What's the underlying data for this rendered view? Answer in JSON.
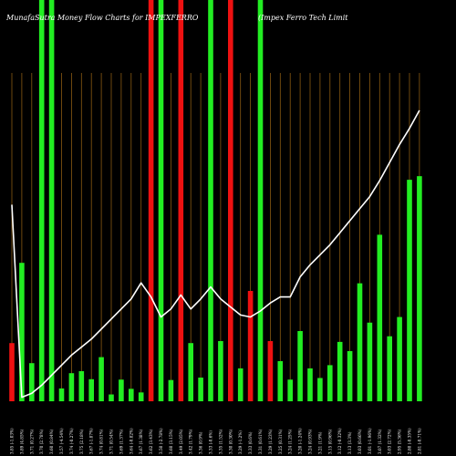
{
  "chart_data": {
    "type": "bar",
    "title": {
      "left": "MunafaSutra  Money Flow  Charts for IMPEXFERRO",
      "right": "(Impex Ferro  Tech Limit"
    },
    "xlabel": "",
    "ylabel": "",
    "grid": "vertical",
    "legend": "none",
    "colors": {
      "up": "#22ee22",
      "down": "#ee1111",
      "line": "#ffffff",
      "grid": "#8a5a12",
      "background": "#000000"
    },
    "ylim": [
      0,
      100
    ],
    "categories": [
      "Thu 05 Jun 2025",
      "Wed 04 Jun 2025",
      "Tue 03 Jun 2025",
      "Mon 02 Jun 2025",
      "Fri 30 May 2025",
      "Thu 29 May 2025",
      "Wed 28 May 2025",
      "Tue 27 May 2025",
      "Mon 26 May 2025",
      "Fri 23 May 2025",
      "Thu 22 May 2025",
      "Wed 21 May 2025",
      "Tue 20 May 2025",
      "Mon 19 May 2025",
      "Fri 16 May 2025",
      "Thu 15 May 2025",
      "Wed 14 May 2025",
      "Tue 13 May 2025",
      "Mon 12 May 2025",
      "Fri 09 May 2025",
      "Thu 08 May 2025",
      "Wed 07 May 2025",
      "Tue 06 May 2025",
      "Mon 05 May 2025",
      "Fri 02 May 2025",
      "Wed 30 Apr 2025",
      "Tue 29 Apr 2025",
      "Mon 28 Apr 2025",
      "Fri 25 Apr 2025",
      "Thu 24 Apr 2025",
      "Wed 23 Apr 2025",
      "Tue 22 Apr 2025",
      "Mon 21 Apr 2025",
      "Thu 17 Apr 2025",
      "Wed 16 Apr 2025",
      "Tue 15 Apr 2025",
      "Fri 11 Apr 2025",
      "Wed 09 Apr 2025",
      "Tue 08 Apr 2025",
      "Mon 07 Apr 2025",
      "Fri 04 Apr 2025",
      "Thu 03 Apr 2025"
    ],
    "tick_labels": [
      "3.85 (-1.03%)",
      "3.89 (4.85%)",
      "3.71 (0.27%)",
      "3.70 (2.78%)",
      "3.60 (0.84%)",
      "3.57 (-4.54%)",
      "3.74 (-0.27%)",
      "3.75 (2.18%)",
      "3.67 (-1.87%)",
      "3.74 (0.81%)",
      "3.71 (0.54%)",
      "3.69 (1.37%)",
      "3.64 (-0.82%)",
      "3.67 (1.38%)",
      "3.62 (3.43%)",
      "3.50 (-2.78%)",
      "3.60 (3.15%)",
      "3.49 (2.05%)",
      "3.42 (1.79%)",
      "3.36 (0.9%)",
      "3.33 (-0.6%)",
      "3.35 (1.52%)",
      "3.30 (0.30%)",
      "3.29 (-1.2%)",
      "3.33 (0.6%)",
      "3.31 (0.61%)",
      "3.29 (1.23%)",
      "3.25 (0.31%)",
      "3.24 (1.25%)",
      "3.20 (-1.24%)",
      "3.24 (0.93%)",
      "3.21 (1.9%)",
      "3.15 (0.96%)",
      "3.12 (-0.32%)",
      "3.13 (3.3%)",
      "3.03 (0.66%)",
      "3.01 (-1.96%)",
      "3.07 (1.32%)",
      "3.03 (2.72%)",
      "2.95 (5.36%)",
      "2.80 (-0.35%)",
      "2.81 (-0.71%)"
    ],
    "flow": [
      "down",
      "up",
      "up",
      "up",
      "up",
      "up",
      "up",
      "up",
      "up",
      "up",
      "up",
      "up",
      "up",
      "up",
      "down",
      "up",
      "up",
      "down",
      "up",
      "up",
      "up",
      "up",
      "down",
      "up",
      "down",
      "up",
      "down",
      "up",
      "up",
      "up",
      "up",
      "up",
      "up",
      "up",
      "up",
      "up",
      "up",
      "up",
      "up",
      "up",
      "up",
      "up"
    ],
    "values": [
      14.5,
      34.5,
      9.5,
      100,
      100,
      3.2,
      7,
      7.5,
      5.5,
      11,
      1.7,
      5.4,
      3.1,
      2.2,
      100,
      100,
      5.3,
      100,
      14.5,
      5.9,
      100,
      15,
      100,
      8.2,
      27.5,
      100,
      15,
      10,
      5.4,
      17.5,
      8.2,
      5.8,
      9,
      14.8,
      12.5,
      29.4,
      19.6,
      41.5,
      16.2,
      21,
      55.2,
      56.1
    ],
    "ma_line": [
      49,
      1,
      2,
      4,
      6.5,
      9,
      11.5,
      13.5,
      15.5,
      18,
      20.5,
      23,
      25.5,
      29.5,
      26,
      21,
      23,
      26.5,
      23,
      25.5,
      28.5,
      25.5,
      23.5,
      21.5,
      21,
      22.5,
      24.5,
      26,
      26,
      31,
      34,
      36.5,
      39,
      42,
      45,
      48,
      51,
      55,
      59.5,
      64,
      68,
      72.5
    ]
  }
}
